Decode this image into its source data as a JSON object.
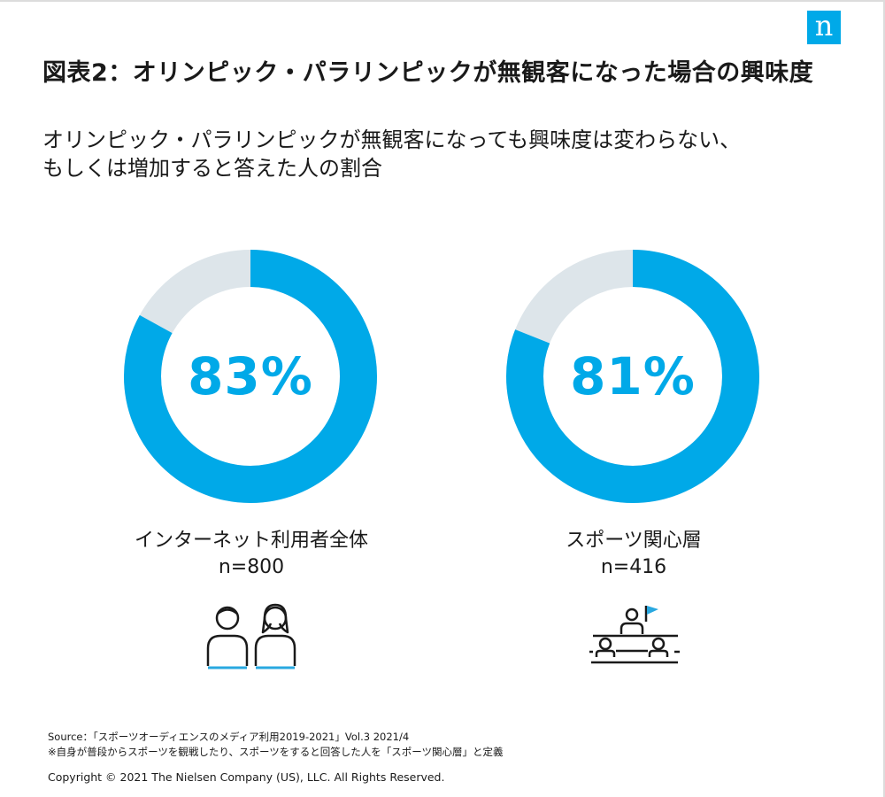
{
  "brand": {
    "logo_letter": "n",
    "accent_color": "#00a9e8",
    "track_color": "#dde5ea",
    "icon_accent_color": "#29a8e0"
  },
  "header": {
    "title": "図表2：オリンピック・パラリンピックが無観客になった場合の興味度",
    "subtitle_line1": "オリンピック・パラリンピックが無観客になっても興味度は変わらない、",
    "subtitle_line2": "もしくは増加すると答えた人の割合"
  },
  "chart_data": {
    "type": "pie",
    "variant": "donut",
    "title": "図表2：オリンピック・パラリンピックが無観客になった場合の興味度",
    "subtitle": "オリンピック・パラリンピックが無観客になっても興味度は変わらない、もしくは増加すると答えた人の割合",
    "unit": "%",
    "items": [
      {
        "label": "インターネット利用者全体",
        "n_label": "n=800",
        "value": 83,
        "value_label": "83%",
        "icon": "two-people-icon"
      },
      {
        "label": "スポーツ関心層",
        "n_label": "n=416",
        "value": 81,
        "value_label": "81%",
        "icon": "sports-audience-icon"
      }
    ]
  },
  "footer": {
    "source": "Source：「スポーツオーディエンスのメディア利用2019-2021」Vol.3 2021/4",
    "note": "※自身が普段からスポーツを観戦したり、スポーツをすると回答した人を「スポーツ関心層」と定義",
    "copyright": "Copyright © 2021 The Nielsen Company (US), LLC. All Rights Reserved."
  }
}
